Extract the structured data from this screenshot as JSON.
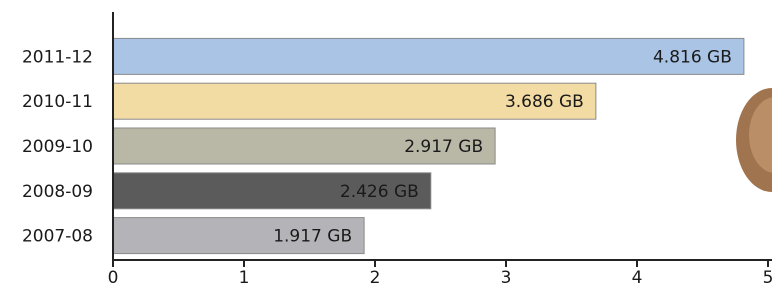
{
  "chart_data": {
    "type": "hbar",
    "categories": [
      "2011-12",
      "2010-11",
      "2009-10",
      "2008-09",
      "2007-08"
    ],
    "values": [
      4.816,
      3.686,
      2.917,
      2.426,
      1.917
    ],
    "value_labels": [
      "4.816 GB",
      "3.686 GB",
      "2.917 GB",
      "2.426 GB",
      "1.917 GB"
    ],
    "colors": [
      "#a9c4e4",
      "#f3dba4",
      "#b9b8a7",
      "#5b5b5b",
      "#b4b4b8"
    ],
    "xlim": [
      0,
      5
    ],
    "xticks": [
      0,
      1,
      2,
      3,
      4,
      5
    ]
  }
}
